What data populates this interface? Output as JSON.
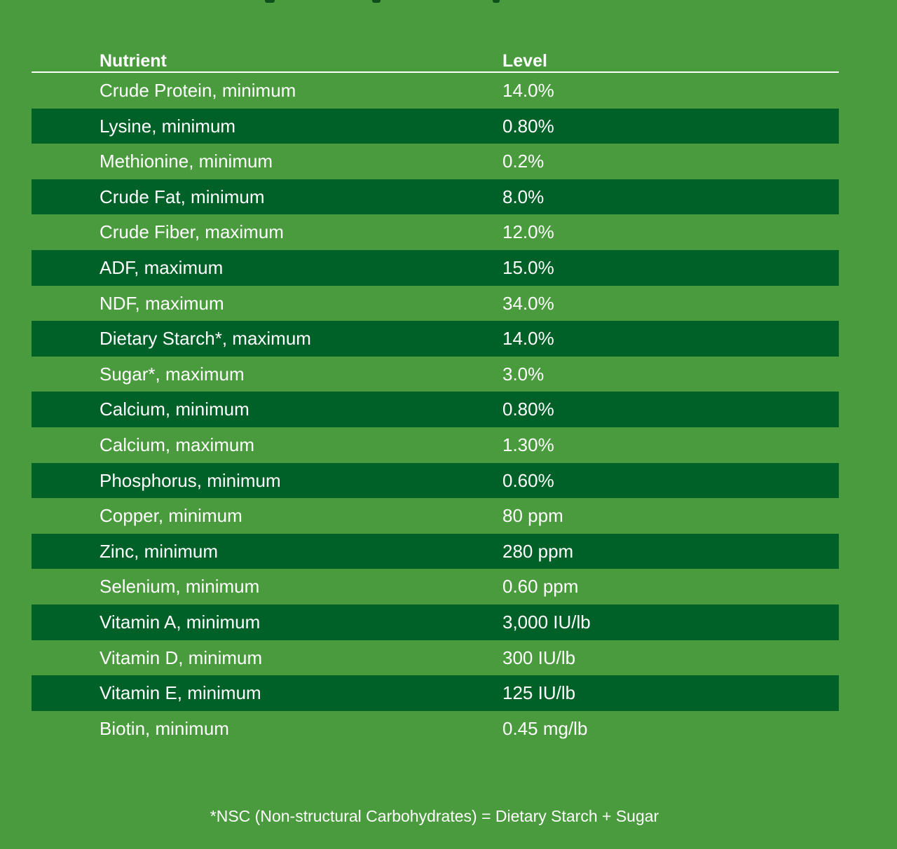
{
  "table": {
    "headers": {
      "nutrient": "Nutrient",
      "level": "Level"
    },
    "rows": [
      {
        "nutrient": "Crude Protein, minimum",
        "level": "14.0%"
      },
      {
        "nutrient": "Lysine, minimum",
        "level": "0.80%"
      },
      {
        "nutrient": "Methionine, minimum",
        "level": "0.2%"
      },
      {
        "nutrient": "Crude Fat, minimum",
        "level": "8.0%"
      },
      {
        "nutrient": "Crude Fiber, maximum",
        "level": "12.0%"
      },
      {
        "nutrient": "ADF, maximum",
        "level": "15.0%"
      },
      {
        "nutrient": "NDF, maximum",
        "level": "34.0%"
      },
      {
        "nutrient": "Dietary Starch*, maximum",
        "level": "14.0%"
      },
      {
        "nutrient": "Sugar*, maximum",
        "level": "3.0%"
      },
      {
        "nutrient": "Calcium, minimum",
        "level": "0.80%"
      },
      {
        "nutrient": "Calcium, maximum",
        "level": "1.30%"
      },
      {
        "nutrient": "Phosphorus, minimum",
        "level": "0.60%"
      },
      {
        "nutrient": "Copper, minimum",
        "level": "80 ppm"
      },
      {
        "nutrient": "Zinc, minimum",
        "level": "280 ppm"
      },
      {
        "nutrient": "Selenium, minimum",
        "level": "0.60 ppm"
      },
      {
        "nutrient": "Vitamin A, minimum",
        "level": "3,000 IU/lb"
      },
      {
        "nutrient": "Vitamin D, minimum",
        "level": "300 IU/lb"
      },
      {
        "nutrient": "Vitamin E, minimum",
        "level": "125 IU/lb"
      },
      {
        "nutrient": "Biotin, minimum",
        "level": "0.45 mg/lb"
      }
    ]
  },
  "footnote": "*NSC (Non-structural Carbohydrates) = Dietary Starch + Sugar",
  "colors": {
    "background": "#4a9a3e",
    "row_shade": "#006128",
    "text": "#ffffff"
  }
}
